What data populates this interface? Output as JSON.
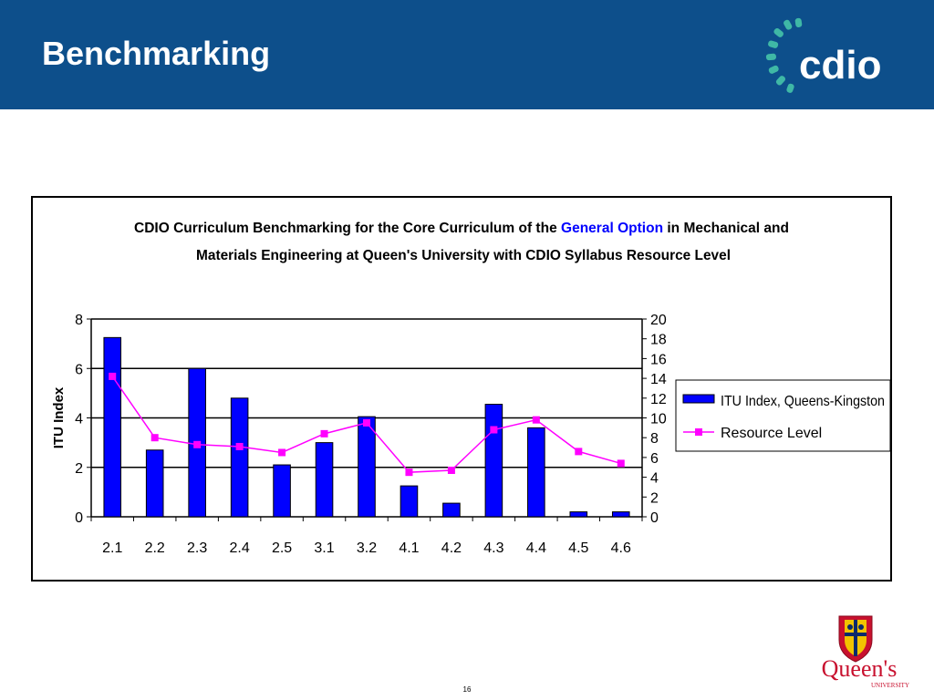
{
  "slide": {
    "title": "Benchmarking",
    "page_number": "16",
    "header_color": "#0d4f8b"
  },
  "logos": {
    "cdio": {
      "text": "cdio",
      "icon": "cdio-swirl-logo"
    },
    "queens": {
      "text": "Queen's",
      "subtext": "UNIVERSITY",
      "icon": "queens-crest-logo"
    }
  },
  "chart_data": {
    "type": "bar",
    "title_parts": [
      "CDIO Curriculum Benchmarking for the Core Curriculum of the ",
      "General Option",
      " in Mechanical and",
      "Materials Engineering at Queen's University with CDIO Syllabus Resource Level"
    ],
    "title_highlight_color": "#0000ff",
    "categories": [
      "2.1",
      "2.2",
      "2.3",
      "2.4",
      "2.5",
      "3.1",
      "3.2",
      "4.1",
      "4.2",
      "4.3",
      "4.4",
      "4.5",
      "4.6"
    ],
    "series": [
      {
        "name": "ITU Index, Queens-Kingston",
        "type": "bar",
        "axis": "left",
        "color": "#0000ff",
        "values": [
          7.25,
          2.7,
          6.0,
          4.8,
          2.1,
          3.0,
          4.05,
          1.25,
          0.55,
          4.55,
          3.6,
          0.2,
          0.2
        ]
      },
      {
        "name": "Resource Level",
        "type": "line",
        "axis": "right",
        "color": "#ff00ff",
        "values": [
          14.2,
          8.0,
          7.3,
          7.1,
          6.5,
          8.4,
          9.5,
          4.5,
          4.7,
          8.8,
          9.8,
          6.6,
          5.4
        ]
      }
    ],
    "ylabel": "ITU Index",
    "ylim": [
      0,
      8
    ],
    "yticks": [
      "0",
      "2",
      "4",
      "6",
      "8"
    ],
    "y2lim": [
      0,
      20
    ],
    "y2ticks": [
      "0",
      "2",
      "4",
      "6",
      "8",
      "10",
      "12",
      "14",
      "16",
      "18",
      "20"
    ],
    "grid": true,
    "legend_position": "right"
  }
}
